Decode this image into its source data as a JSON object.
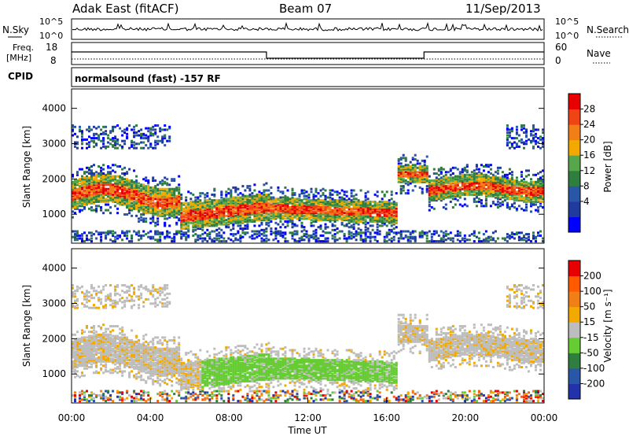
{
  "header": {
    "radar": "Adak East (fitACF)",
    "beam": "Beam 07",
    "date": "11/Sep/2013"
  },
  "panels": {
    "nsky": {
      "label": "N.Sky",
      "left_ticks": [
        "10^5",
        "10^0"
      ],
      "right_ticks": [
        "10^5",
        "10^0"
      ],
      "right_label": "N.Search"
    },
    "freq": {
      "label_top": "Freq.",
      "label_bottom": "[MHz]",
      "left_ticks": [
        "18",
        "8"
      ],
      "right_ticks": [
        "60",
        "0"
      ],
      "right_label": "Nave"
    },
    "cpid": {
      "label": "CPID",
      "text": "normalsound (fast) -157 RF"
    }
  },
  "colors": {
    "power": [
      "#0000ff",
      "#1f3b9e",
      "#2a56a8",
      "#2f7d3f",
      "#57a64c",
      "#f2a900",
      "#f07f18",
      "#f04414",
      "#e80000"
    ],
    "velocity": [
      "#2233aa",
      "#2a56a8",
      "#2f7d3f",
      "#66cc33",
      "#bdbdbd",
      "#f2a900",
      "#f07f18",
      "#ff5a00",
      "#e80000"
    ]
  },
  "chart_data": [
    {
      "type": "heatmap",
      "name": "power",
      "ylabel": "Slant Range [km]",
      "ylim": [
        180,
        4550
      ],
      "yticks": [
        "4000",
        "3000",
        "2000",
        "1000"
      ],
      "xlim": [
        0,
        24
      ],
      "colorbar_label": "Power [dB]",
      "colorbar_ticks": [
        "28",
        "24",
        "20",
        "16",
        "12",
        "8",
        "4"
      ],
      "colorbar_range": [
        0,
        30
      ]
    },
    {
      "type": "heatmap",
      "name": "velocity",
      "ylabel": "Slant Range [km]",
      "ylim": [
        180,
        4550
      ],
      "yticks": [
        "4000",
        "3000",
        "2000",
        "1000"
      ],
      "xlim": [
        0,
        24
      ],
      "xlabel": "Time UT",
      "xticks": [
        "00:00",
        "04:00",
        "08:00",
        "12:00",
        "16:00",
        "20:00",
        "00:00"
      ],
      "colorbar_label": "Velocity [m s⁻¹]",
      "colorbar_ticks": [
        "200",
        "100",
        "50",
        "15",
        "-15",
        "-50",
        "-100",
        "-200"
      ]
    }
  ]
}
